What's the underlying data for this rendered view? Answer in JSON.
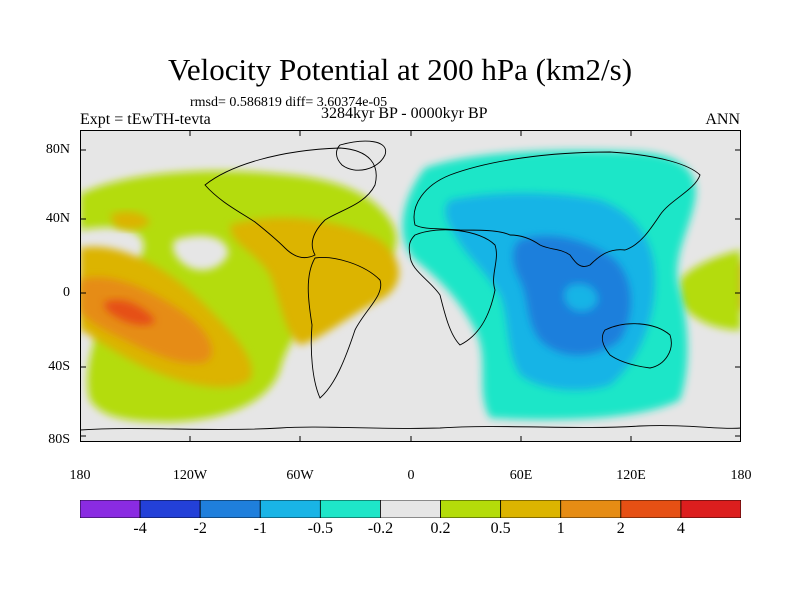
{
  "title": "Velocity Potential at 200 hPa (km2/s)",
  "stats": "rmsd= 0.586819 diff= 3.60374e-05",
  "experiment": "Expt = tEwTH-tevta",
  "period": "3284kyr BP - 0000kyr BP",
  "season": "ANN",
  "lat_labels": [
    "80N",
    "40N",
    "0",
    "40S",
    "80S"
  ],
  "lon_labels": [
    "180",
    "120W",
    "60W",
    "0",
    "60E",
    "120E",
    "180"
  ],
  "colorbar": {
    "labels": [
      "-4",
      "-2",
      "-1",
      "-0.5",
      "-0.2",
      "0.2",
      "0.5",
      "1",
      "2",
      "4"
    ],
    "colors": [
      "#8a2be2",
      "#2340d8",
      "#1f7fdc",
      "#19b4e6",
      "#1ee6c8",
      "#e6e6e6",
      "#b4dc0a",
      "#dcb400",
      "#e68c14",
      "#e65014",
      "#dc1e1e"
    ]
  },
  "field_colors": {
    "neutral": "#e6e6e6",
    "pos_low": "#b4dc0a",
    "pos_mid": "#dcb400",
    "pos_high": "#e68c14",
    "pos_max": "#e65014",
    "neg_low": "#1ee6c8",
    "neg_mid": "#19b4e6",
    "neg_high": "#1f7fdc"
  }
}
